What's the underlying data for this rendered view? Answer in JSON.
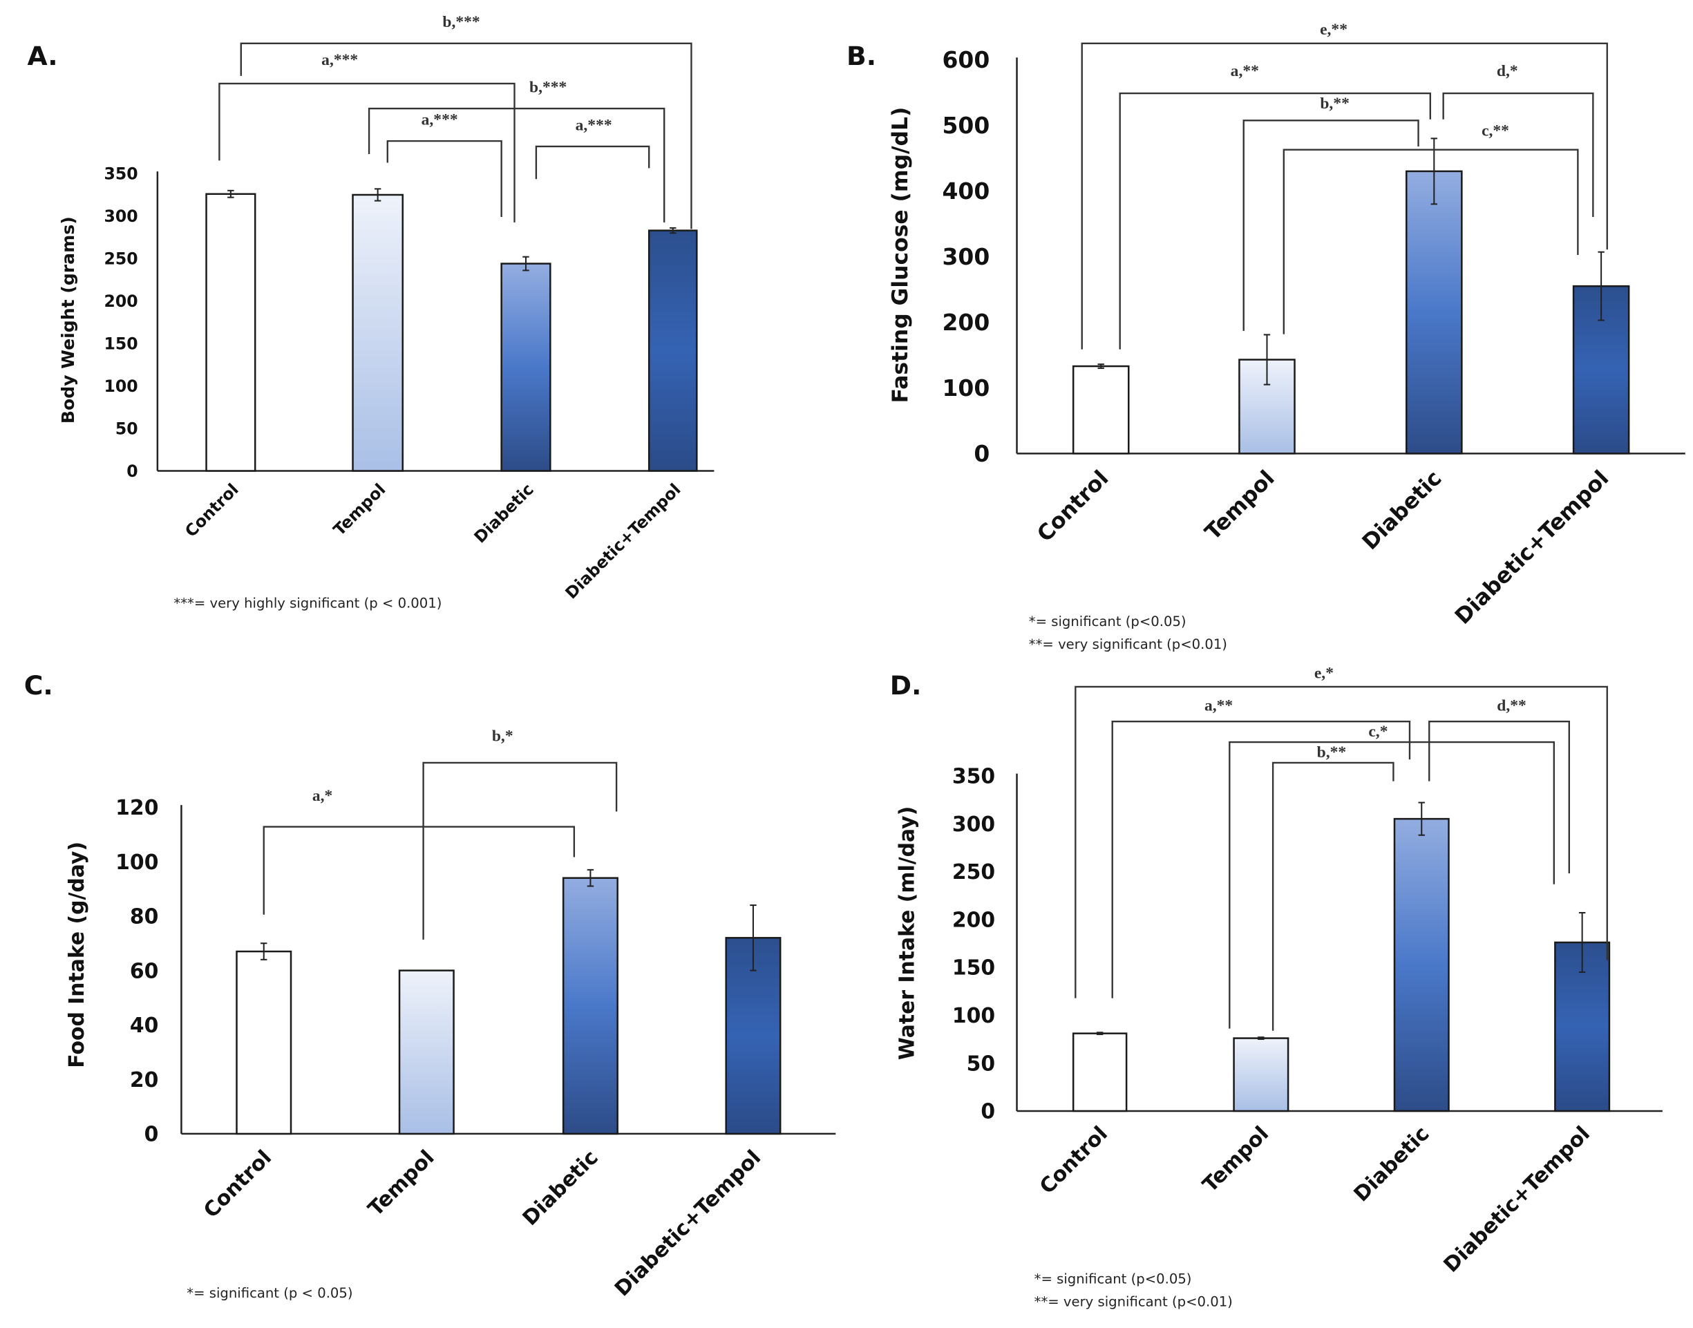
{
  "chart_data": [
    {
      "type": "bar",
      "panel": "A.",
      "title": "",
      "xlabel": "",
      "ylabel": "Body Weight (grams)",
      "categories": [
        "Control",
        "Tempol",
        "Diabetic",
        "Diabetic+Tempol"
      ],
      "values": [
        326,
        325,
        244,
        283
      ],
      "errors": [
        4,
        7,
        8,
        3
      ],
      "ylim": [
        0,
        350
      ],
      "yticks": [
        "0",
        "50",
        "100",
        "150",
        "200",
        "250",
        "300",
        "350"
      ],
      "grid": false,
      "comparisons": [
        {
          "from": "Control",
          "to": "Diabetic+Tempol",
          "label": "b,***"
        },
        {
          "from": "Control",
          "to": "Diabetic",
          "label": "a,***"
        },
        {
          "from": "Tempol",
          "to": "Diabetic+Tempol",
          "label": "b,***"
        },
        {
          "from": "Tempol",
          "to": "Diabetic",
          "label": "a,***"
        },
        {
          "from": "Diabetic",
          "to": "Diabetic+Tempol",
          "label": "a,***"
        }
      ],
      "footnotes": [
        "***= very highly significant (p < 0.001)"
      ]
    },
    {
      "type": "bar",
      "panel": "B.",
      "title": "",
      "xlabel": "",
      "ylabel": "Fasting Glucose (mg/dL)",
      "categories": [
        "Control",
        "Tempol",
        "Diabetic",
        "Diabetic+Tempol"
      ],
      "values": [
        133,
        143,
        430,
        255
      ],
      "errors": [
        3,
        38,
        50,
        52
      ],
      "ylim": [
        0,
        600
      ],
      "yticks": [
        "0",
        "100",
        "200",
        "300",
        "400",
        "500",
        "600"
      ],
      "grid": false,
      "comparisons": [
        {
          "from": "Control",
          "to": "Diabetic+Tempol",
          "label": "e,**"
        },
        {
          "from": "Control",
          "to": "Diabetic",
          "label": "a,**"
        },
        {
          "from": "Diabetic",
          "to": "Diabetic+Tempol",
          "label": "d,*"
        },
        {
          "from": "Tempol",
          "to": "Diabetic",
          "label": "b,**"
        },
        {
          "from": "Tempol",
          "to": "Diabetic+Tempol",
          "label": "c,**"
        }
      ],
      "footnotes": [
        "*= significant (p<0.05)",
        "**= very significant (p<0.01)"
      ]
    },
    {
      "type": "bar",
      "panel": "C.",
      "title": "",
      "xlabel": "",
      "ylabel": "Food Intake (g/day)",
      "categories": [
        "Control",
        "Tempol",
        "Diabetic",
        "Diabetic+Tempol"
      ],
      "values": [
        67,
        60,
        94,
        72
      ],
      "errors": [
        3,
        0.5,
        3,
        12
      ],
      "ylim": [
        0,
        120
      ],
      "yticks": [
        "0",
        "20",
        "40",
        "60",
        "80",
        "100",
        "120"
      ],
      "grid": false,
      "comparisons": [
        {
          "from": "Control",
          "to": "Diabetic",
          "label": "a,*"
        },
        {
          "from": "Tempol",
          "to": "Diabetic+Tempol",
          "label": "b,*"
        }
      ],
      "footnotes": [
        "*= significant (p < 0.05)"
      ]
    },
    {
      "type": "bar",
      "panel": "D.",
      "title": "",
      "xlabel": "",
      "ylabel": "Water Intake (ml/day)",
      "categories": [
        "Control",
        "Tempol",
        "Diabetic",
        "Diabetic+Tempol"
      ],
      "values": [
        81,
        76,
        305,
        176
      ],
      "errors": [
        1,
        1,
        17,
        31
      ],
      "ylim": [
        0,
        350
      ],
      "yticks": [
        "0",
        "50",
        "100",
        "150",
        "200",
        "250",
        "300",
        "350"
      ],
      "grid": false,
      "comparisons": [
        {
          "from": "Control",
          "to": "Diabetic+Tempol",
          "label": "e,*"
        },
        {
          "from": "Control",
          "to": "Diabetic",
          "label": "a,**"
        },
        {
          "from": "Diabetic",
          "to": "Diabetic+Tempol",
          "label": "d,**"
        },
        {
          "from": "Tempol",
          "to": "Diabetic+Tempol",
          "label": "c,*"
        },
        {
          "from": "Tempol",
          "to": "Diabetic",
          "label": "b,**"
        }
      ],
      "footnotes": [
        "*= significant (p<0.05)",
        "**= very significant (p<0.01)"
      ]
    }
  ],
  "colors": {
    "axis": "#111111",
    "bracket": "#333333",
    "control": "#ffffff",
    "tempol_top": "#eef2fa",
    "tempol_bottom": "#a9bfe6",
    "diabetic_top": "#93ade0",
    "diabetic_mid": "#4a78c9",
    "diabetic_bottom": "#2d4c88",
    "dt_top": "#2c4f8e",
    "dt_mid": "#3563b4",
    "dt_bottom": "#2b4b88"
  }
}
